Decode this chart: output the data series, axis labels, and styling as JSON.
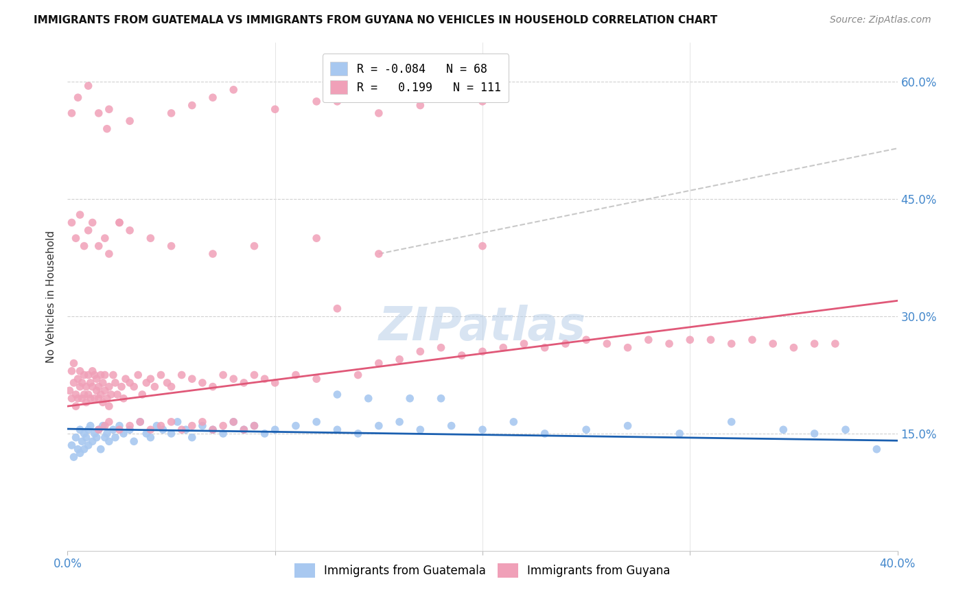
{
  "title": "IMMIGRANTS FROM GUATEMALA VS IMMIGRANTS FROM GUYANA NO VEHICLES IN HOUSEHOLD CORRELATION CHART",
  "source": "Source: ZipAtlas.com",
  "ylabel": "No Vehicles in Household",
  "xlim": [
    0.0,
    0.4
  ],
  "ylim": [
    0.0,
    0.65
  ],
  "y_tick_positions": [
    0.15,
    0.3,
    0.45,
    0.6
  ],
  "y_tick_labels_right": [
    "15.0%",
    "30.0%",
    "45.0%",
    "60.0%"
  ],
  "x_tick_positions": [
    0.0,
    0.1,
    0.2,
    0.3,
    0.4
  ],
  "color_guatemala": "#a8c8f0",
  "color_guyana": "#f0a0b8",
  "line_color_guatemala": "#1a5fb0",
  "line_color_guyana": "#e05878",
  "watermark": "ZIPatlas",
  "legend_label1": "R = -0.084   N = 68",
  "legend_label2": "R =   0.199   N = 111",
  "guatemala_scatter_x": [
    0.002,
    0.003,
    0.004,
    0.005,
    0.006,
    0.006,
    0.007,
    0.008,
    0.008,
    0.009,
    0.01,
    0.01,
    0.011,
    0.012,
    0.013,
    0.014,
    0.015,
    0.016,
    0.017,
    0.018,
    0.019,
    0.02,
    0.022,
    0.023,
    0.025,
    0.027,
    0.03,
    0.032,
    0.035,
    0.038,
    0.04,
    0.043,
    0.046,
    0.05,
    0.053,
    0.057,
    0.06,
    0.065,
    0.07,
    0.075,
    0.08,
    0.085,
    0.09,
    0.095,
    0.1,
    0.11,
    0.12,
    0.13,
    0.14,
    0.15,
    0.16,
    0.17,
    0.185,
    0.2,
    0.215,
    0.23,
    0.25,
    0.27,
    0.295,
    0.32,
    0.345,
    0.36,
    0.375,
    0.39,
    0.13,
    0.145,
    0.165,
    0.18
  ],
  "guatemala_scatter_y": [
    0.135,
    0.12,
    0.145,
    0.13,
    0.155,
    0.125,
    0.14,
    0.15,
    0.13,
    0.145,
    0.155,
    0.135,
    0.16,
    0.14,
    0.15,
    0.145,
    0.155,
    0.13,
    0.16,
    0.145,
    0.15,
    0.14,
    0.155,
    0.145,
    0.16,
    0.15,
    0.155,
    0.14,
    0.165,
    0.15,
    0.145,
    0.16,
    0.155,
    0.15,
    0.165,
    0.155,
    0.145,
    0.16,
    0.155,
    0.15,
    0.165,
    0.155,
    0.16,
    0.15,
    0.155,
    0.16,
    0.165,
    0.155,
    0.15,
    0.16,
    0.165,
    0.155,
    0.16,
    0.155,
    0.165,
    0.15,
    0.155,
    0.16,
    0.15,
    0.165,
    0.155,
    0.15,
    0.155,
    0.13,
    0.2,
    0.195,
    0.195,
    0.195
  ],
  "guyana_scatter_x": [
    0.001,
    0.002,
    0.002,
    0.003,
    0.003,
    0.004,
    0.004,
    0.005,
    0.005,
    0.006,
    0.006,
    0.007,
    0.007,
    0.008,
    0.008,
    0.009,
    0.009,
    0.01,
    0.01,
    0.011,
    0.011,
    0.012,
    0.012,
    0.013,
    0.013,
    0.014,
    0.014,
    0.015,
    0.015,
    0.016,
    0.016,
    0.017,
    0.017,
    0.018,
    0.018,
    0.019,
    0.019,
    0.02,
    0.02,
    0.021,
    0.022,
    0.023,
    0.024,
    0.025,
    0.026,
    0.027,
    0.028,
    0.03,
    0.032,
    0.034,
    0.036,
    0.038,
    0.04,
    0.042,
    0.045,
    0.048,
    0.05,
    0.055,
    0.06,
    0.065,
    0.07,
    0.075,
    0.08,
    0.085,
    0.09,
    0.095,
    0.1,
    0.11,
    0.12,
    0.13,
    0.14,
    0.15,
    0.16,
    0.17,
    0.18,
    0.19,
    0.2,
    0.21,
    0.22,
    0.23,
    0.24,
    0.25,
    0.26,
    0.27,
    0.28,
    0.29,
    0.3,
    0.31,
    0.32,
    0.33,
    0.34,
    0.35,
    0.36,
    0.37,
    0.015,
    0.018,
    0.02,
    0.025,
    0.03,
    0.035,
    0.04,
    0.045,
    0.05,
    0.055,
    0.06,
    0.065,
    0.07,
    0.075,
    0.08,
    0.085,
    0.09
  ],
  "guyana_scatter_y": [
    0.205,
    0.23,
    0.195,
    0.215,
    0.24,
    0.2,
    0.185,
    0.22,
    0.195,
    0.21,
    0.23,
    0.195,
    0.215,
    0.2,
    0.225,
    0.19,
    0.21,
    0.225,
    0.2,
    0.215,
    0.195,
    0.23,
    0.21,
    0.195,
    0.225,
    0.205,
    0.22,
    0.21,
    0.195,
    0.225,
    0.2,
    0.215,
    0.19,
    0.205,
    0.225,
    0.195,
    0.54,
    0.21,
    0.185,
    0.2,
    0.225,
    0.215,
    0.2,
    0.42,
    0.21,
    0.195,
    0.22,
    0.215,
    0.21,
    0.225,
    0.2,
    0.215,
    0.22,
    0.21,
    0.225,
    0.215,
    0.21,
    0.225,
    0.22,
    0.215,
    0.21,
    0.225,
    0.22,
    0.215,
    0.225,
    0.22,
    0.215,
    0.225,
    0.22,
    0.31,
    0.225,
    0.24,
    0.245,
    0.255,
    0.26,
    0.25,
    0.255,
    0.26,
    0.265,
    0.26,
    0.265,
    0.27,
    0.265,
    0.26,
    0.27,
    0.265,
    0.27,
    0.27,
    0.265,
    0.27,
    0.265,
    0.26,
    0.265,
    0.265,
    0.155,
    0.16,
    0.165,
    0.155,
    0.16,
    0.165,
    0.155,
    0.16,
    0.165,
    0.155,
    0.16,
    0.165,
    0.155,
    0.16,
    0.165,
    0.155,
    0.16
  ],
  "guyana_high_x": [
    0.002,
    0.005,
    0.01,
    0.015,
    0.02,
    0.03,
    0.05,
    0.06,
    0.07,
    0.08,
    0.1,
    0.12,
    0.13,
    0.15,
    0.17,
    0.2
  ],
  "guyana_high_y": [
    0.56,
    0.58,
    0.595,
    0.56,
    0.565,
    0.55,
    0.56,
    0.57,
    0.58,
    0.59,
    0.565,
    0.575,
    0.575,
    0.56,
    0.57,
    0.575
  ],
  "guyana_mid_x": [
    0.002,
    0.004,
    0.006,
    0.008,
    0.01,
    0.012,
    0.015,
    0.018,
    0.02,
    0.025,
    0.03,
    0.04,
    0.05,
    0.07,
    0.09,
    0.12,
    0.15,
    0.2
  ],
  "guyana_mid_y": [
    0.42,
    0.4,
    0.43,
    0.39,
    0.41,
    0.42,
    0.39,
    0.4,
    0.38,
    0.42,
    0.41,
    0.4,
    0.39,
    0.38,
    0.39,
    0.4,
    0.38,
    0.39
  ]
}
